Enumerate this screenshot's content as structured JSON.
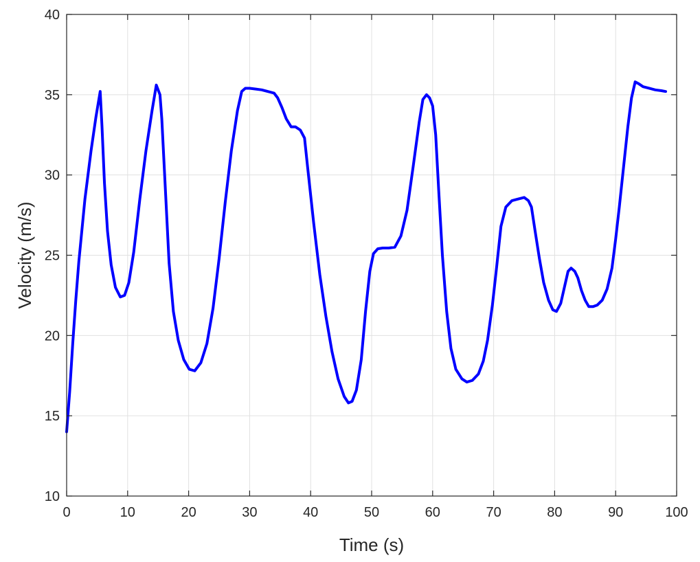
{
  "chart_data": {
    "type": "line",
    "title": "",
    "xlabel": "Time (s)",
    "ylabel": "Velocity (m/s)",
    "xlim": [
      0,
      100
    ],
    "ylim": [
      10,
      40
    ],
    "xticks": [
      0,
      10,
      20,
      30,
      40,
      50,
      60,
      70,
      80,
      90,
      100
    ],
    "yticks": [
      10,
      15,
      20,
      25,
      30,
      35,
      40
    ],
    "grid": true,
    "legend": "none",
    "series": [
      {
        "color": "#0000ff",
        "x": [
          0,
          0.5,
          1,
          1.5,
          2,
          3,
          4,
          4.8,
          5.5,
          5.8,
          6.2,
          6.7,
          7.3,
          8,
          8.8,
          9.5,
          10.2,
          11,
          12,
          13,
          14,
          14.7,
          15.3,
          15.6,
          16.2,
          16.8,
          17.5,
          18.3,
          19.2,
          20.1,
          21,
          22,
          23,
          24,
          25,
          26,
          27,
          28,
          28.7,
          29.3,
          30,
          31,
          32,
          33,
          34,
          34.6,
          35.3,
          36,
          36.8,
          37.5,
          38.3,
          39,
          39.5,
          40.5,
          41.5,
          42.5,
          43.5,
          44.5,
          45.5,
          46.2,
          46.8,
          47.5,
          48.3,
          49,
          49.7,
          50.3,
          51,
          51.8,
          52.8,
          53.8,
          54.8,
          55.8,
          56.8,
          57.8,
          58.4,
          59,
          59.5,
          60,
          60.5,
          61,
          61.6,
          62.3,
          63,
          63.8,
          64.8,
          65.6,
          66.5,
          67.5,
          68.3,
          69,
          69.8,
          70.5,
          71.2,
          72,
          73,
          74,
          75,
          75.7,
          76.2,
          76.8,
          77.5,
          78.2,
          79,
          79.7,
          80.3,
          81,
          81.6,
          82.2,
          82.7,
          83.3,
          83.8,
          84.4,
          85,
          85.6,
          86.3,
          87,
          87.8,
          88.6,
          89.4,
          90,
          90.6,
          91.3,
          92,
          92.6,
          93.2,
          93.7,
          94.5,
          95.5,
          96.5,
          97.5,
          98.2
        ],
        "values": [
          14.0,
          16.5,
          19.5,
          22.2,
          24.6,
          28.5,
          31.5,
          33.6,
          35.2,
          33.0,
          29.5,
          26.5,
          24.4,
          23.0,
          22.4,
          22.5,
          23.3,
          25.2,
          28.5,
          31.5,
          34.0,
          35.6,
          35.0,
          33.5,
          29.0,
          24.5,
          21.5,
          19.7,
          18.5,
          17.9,
          17.8,
          18.3,
          19.5,
          21.7,
          24.8,
          28.3,
          31.5,
          34.0,
          35.2,
          35.4,
          35.4,
          35.35,
          35.3,
          35.2,
          35.1,
          34.8,
          34.2,
          33.5,
          33.0,
          33.0,
          32.8,
          32.3,
          30.5,
          27.0,
          23.8,
          21.2,
          19.0,
          17.3,
          16.2,
          15.8,
          15.9,
          16.6,
          18.5,
          21.5,
          24.0,
          25.1,
          25.4,
          25.45,
          25.45,
          25.5,
          26.2,
          27.8,
          30.5,
          33.3,
          34.7,
          35.0,
          34.8,
          34.3,
          32.5,
          29.0,
          25.0,
          21.5,
          19.2,
          17.9,
          17.3,
          17.1,
          17.2,
          17.6,
          18.4,
          19.7,
          21.9,
          24.3,
          26.8,
          28.0,
          28.4,
          28.5,
          28.6,
          28.4,
          28.0,
          26.5,
          24.8,
          23.3,
          22.2,
          21.6,
          21.5,
          22.0,
          23.0,
          24.0,
          24.2,
          24.0,
          23.6,
          22.8,
          22.2,
          21.8,
          21.8,
          21.9,
          22.2,
          22.9,
          24.2,
          26.0,
          28.0,
          30.5,
          33.0,
          34.8,
          35.8,
          35.7,
          35.5,
          35.4,
          35.3,
          35.25,
          35.2
        ]
      }
    ]
  }
}
